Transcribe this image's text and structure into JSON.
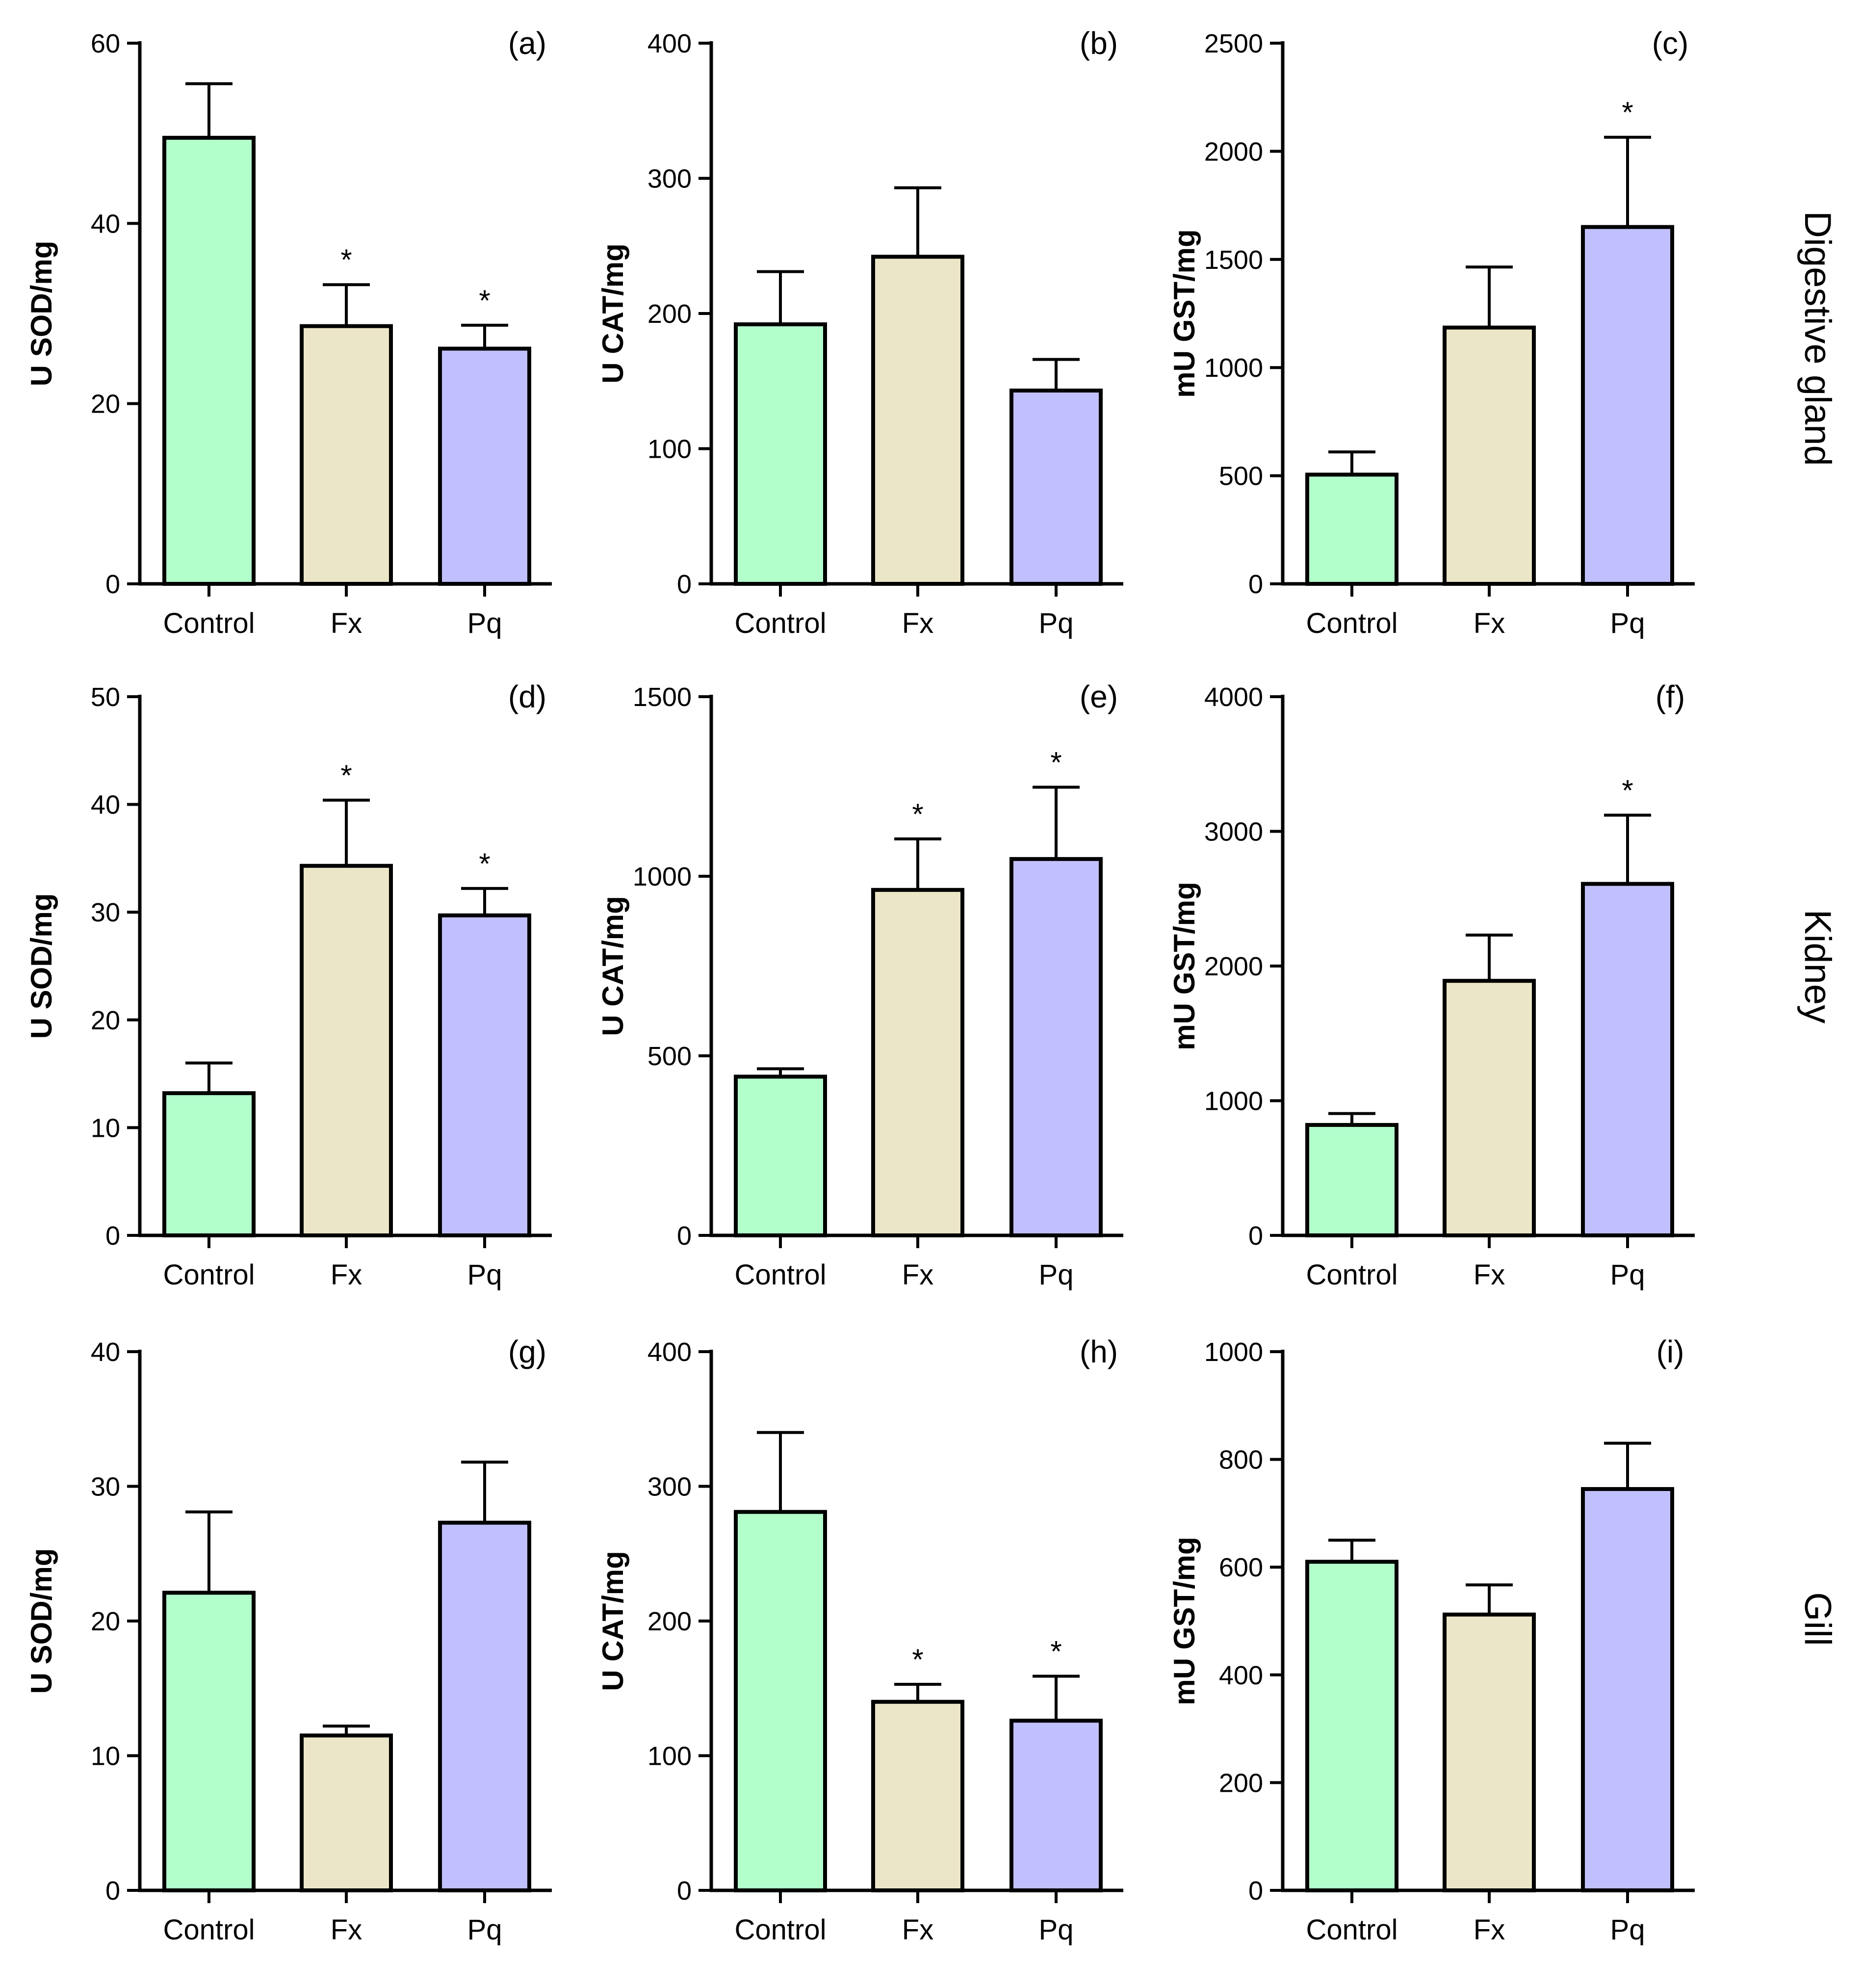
{
  "chart_data": [
    {
      "id": "a",
      "type": "bar",
      "panel_label": "(a)",
      "ylabel": "U SOD/mg",
      "categories": [
        "Control",
        "Fx",
        "Pq"
      ],
      "values": [
        49.5,
        28.6,
        26.1
      ],
      "errors": [
        6.0,
        4.6,
        2.6
      ],
      "significant": [
        false,
        true,
        true
      ],
      "sig_marker": "*",
      "ylim": [
        0,
        60
      ],
      "yticks": [
        "0",
        "20",
        "40",
        "60"
      ],
      "colors": [
        "#b3ffcc",
        "#ece6c8",
        "#c1c0ff"
      ]
    },
    {
      "id": "b",
      "type": "bar",
      "panel_label": "(b)",
      "ylabel": "U CAT/mg",
      "categories": [
        "Control",
        "Fx",
        "Pq"
      ],
      "values": [
        192,
        242,
        143
      ],
      "errors": [
        39,
        51,
        23
      ],
      "significant": [
        false,
        false,
        false
      ],
      "sig_marker": "*",
      "ylim": [
        0,
        400
      ],
      "yticks": [
        "0",
        "100",
        "200",
        "300",
        "400"
      ],
      "colors": [
        "#b3ffcc",
        "#ece6c8",
        "#c1c0ff"
      ]
    },
    {
      "id": "c",
      "type": "bar",
      "panel_label": "(c)",
      "ylabel": "mU GST/mg",
      "categories": [
        "Control",
        "Fx",
        "Pq"
      ],
      "values": [
        505,
        1185,
        1650
      ],
      "errors": [
        105,
        280,
        415
      ],
      "significant": [
        false,
        false,
        true
      ],
      "sig_marker": "*",
      "ylim": [
        0,
        2500
      ],
      "yticks": [
        "0",
        "500",
        "1000",
        "1500",
        "2000",
        "2500"
      ],
      "colors": [
        "#b3ffcc",
        "#ece6c8",
        "#c1c0ff"
      ]
    },
    {
      "id": "d",
      "type": "bar",
      "panel_label": "(d)",
      "ylabel": "U SOD/mg",
      "categories": [
        "Control",
        "Fx",
        "Pq"
      ],
      "values": [
        13.2,
        34.3,
        29.7
      ],
      "errors": [
        2.8,
        6.1,
        2.5
      ],
      "significant": [
        false,
        true,
        true
      ],
      "sig_marker": "*",
      "ylim": [
        0,
        50
      ],
      "yticks": [
        "0",
        "10",
        "20",
        "30",
        "40",
        "50"
      ],
      "colors": [
        "#b3ffcc",
        "#ece6c8",
        "#c1c0ff"
      ]
    },
    {
      "id": "e",
      "type": "bar",
      "panel_label": "(e)",
      "ylabel": "U CAT/mg",
      "categories": [
        "Control",
        "Fx",
        "Pq"
      ],
      "values": [
        442,
        962,
        1048
      ],
      "errors": [
        22,
        142,
        200
      ],
      "significant": [
        false,
        true,
        true
      ],
      "sig_marker": "*",
      "ylim": [
        0,
        1500
      ],
      "yticks": [
        "0",
        "500",
        "1000",
        "1500"
      ],
      "colors": [
        "#b3ffcc",
        "#ece6c8",
        "#c1c0ff"
      ]
    },
    {
      "id": "f",
      "type": "bar",
      "panel_label": "(f)",
      "ylabel": "mU GST/mg",
      "categories": [
        "Control",
        "Fx",
        "Pq"
      ],
      "values": [
        820,
        1890,
        2610
      ],
      "errors": [
        85,
        340,
        510
      ],
      "significant": [
        false,
        false,
        true
      ],
      "sig_marker": "*",
      "ylim": [
        0,
        4000
      ],
      "yticks": [
        "0",
        "1000",
        "2000",
        "3000",
        "4000"
      ],
      "colors": [
        "#b3ffcc",
        "#ece6c8",
        "#c1c0ff"
      ]
    },
    {
      "id": "g",
      "type": "bar",
      "panel_label": "(g)",
      "ylabel": "U SOD/mg",
      "categories": [
        "Control",
        "Fx",
        "Pq"
      ],
      "values": [
        22.1,
        11.5,
        27.3
      ],
      "errors": [
        6.0,
        0.7,
        4.5
      ],
      "significant": [
        false,
        false,
        false
      ],
      "sig_marker": "*",
      "ylim": [
        0,
        40
      ],
      "yticks": [
        "0",
        "10",
        "20",
        "30",
        "40"
      ],
      "colors": [
        "#b3ffcc",
        "#ece6c8",
        "#c1c0ff"
      ]
    },
    {
      "id": "h",
      "type": "bar",
      "panel_label": "(h)",
      "ylabel": "U CAT/mg",
      "categories": [
        "Control",
        "Fx",
        "Pq"
      ],
      "values": [
        281,
        140,
        126
      ],
      "errors": [
        59,
        13,
        33
      ],
      "significant": [
        false,
        true,
        true
      ],
      "sig_marker": "*",
      "ylim": [
        0,
        400
      ],
      "yticks": [
        "0",
        "100",
        "200",
        "300",
        "400"
      ],
      "colors": [
        "#b3ffcc",
        "#ece6c8",
        "#c1c0ff"
      ]
    },
    {
      "id": "i",
      "type": "bar",
      "panel_label": "(i)",
      "ylabel": "mU GST/mg",
      "categories": [
        "Control",
        "Fx",
        "Pq"
      ],
      "values": [
        610,
        512,
        745
      ],
      "errors": [
        40,
        55,
        85
      ],
      "significant": [
        false,
        false,
        false
      ],
      "sig_marker": "*",
      "ylim": [
        0,
        1000
      ],
      "yticks": [
        "0",
        "200",
        "400",
        "600",
        "800",
        "1000"
      ],
      "colors": [
        "#b3ffcc",
        "#ece6c8",
        "#c1c0ff"
      ]
    }
  ],
  "row_labels": [
    "Digestive gland",
    "Kidney",
    "Gill"
  ]
}
